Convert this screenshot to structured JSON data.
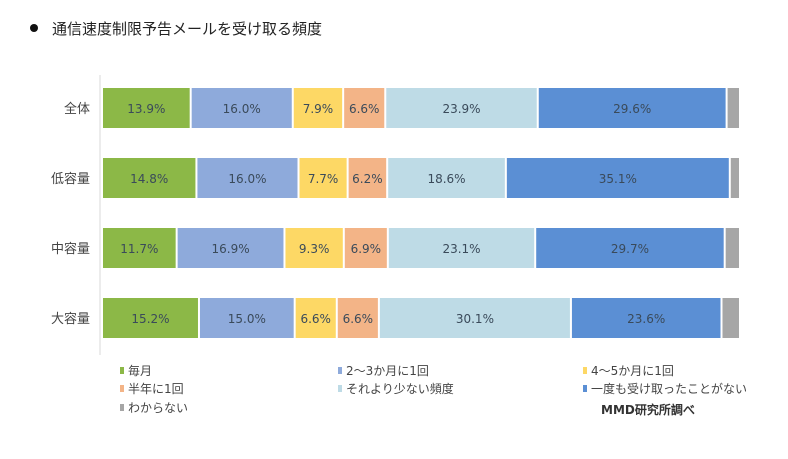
{
  "title": "通信速度制限予告メールを受け取る頻度",
  "source": "MMD研究所調べ",
  "chart_data": {
    "type": "bar",
    "orientation": "horizontal",
    "stacked": true,
    "title": "通信速度制限予告メールを受け取る頻度",
    "categories": [
      "全体",
      "低容量",
      "中容量",
      "大容量"
    ],
    "unit": "%",
    "xlim": [
      0,
      100
    ],
    "grid": false,
    "legend_position": "bottom",
    "series": [
      {
        "name": "毎月",
        "color": "#8cb847",
        "values": [
          13.9,
          14.8,
          11.7,
          15.2
        ],
        "labels": [
          "13.9%",
          "14.8%",
          "11.7%",
          "15.2%"
        ]
      },
      {
        "name": "2～3か月に1回",
        "color": "#8eaadb",
        "values": [
          16.0,
          16.0,
          16.9,
          15.0
        ],
        "labels": [
          "16.0%",
          "16.0%",
          "16.9%",
          "15.0%"
        ]
      },
      {
        "name": "4～5か月に1回",
        "color": "#fdd865",
        "values": [
          7.9,
          7.7,
          9.3,
          6.6
        ],
        "labels": [
          "7.9%",
          "7.7%",
          "9.3%",
          "6.6%"
        ]
      },
      {
        "name": "半年に1回",
        "color": "#f3b487",
        "values": [
          6.6,
          6.2,
          6.9,
          6.6
        ],
        "labels": [
          "6.6%",
          "6.2%",
          "6.9%",
          "6.6%"
        ]
      },
      {
        "name": "それより少ない頻度",
        "color": "#bedbe6",
        "values": [
          23.9,
          18.6,
          23.1,
          30.1
        ],
        "labels": [
          "23.9%",
          "18.6%",
          "23.1%",
          "30.1%"
        ]
      },
      {
        "name": "一度も受け取ったことがない",
        "color": "#5b8fd4",
        "values": [
          29.6,
          35.1,
          29.7,
          23.6
        ],
        "labels": [
          "29.6%",
          "35.1%",
          "29.7%",
          "23.6%"
        ]
      },
      {
        "name": "わからない",
        "color": "#a6a6a6",
        "values": [
          2.1,
          1.6,
          2.4,
          2.9
        ],
        "labels": [
          "",
          "",
          "",
          ""
        ]
      }
    ]
  }
}
